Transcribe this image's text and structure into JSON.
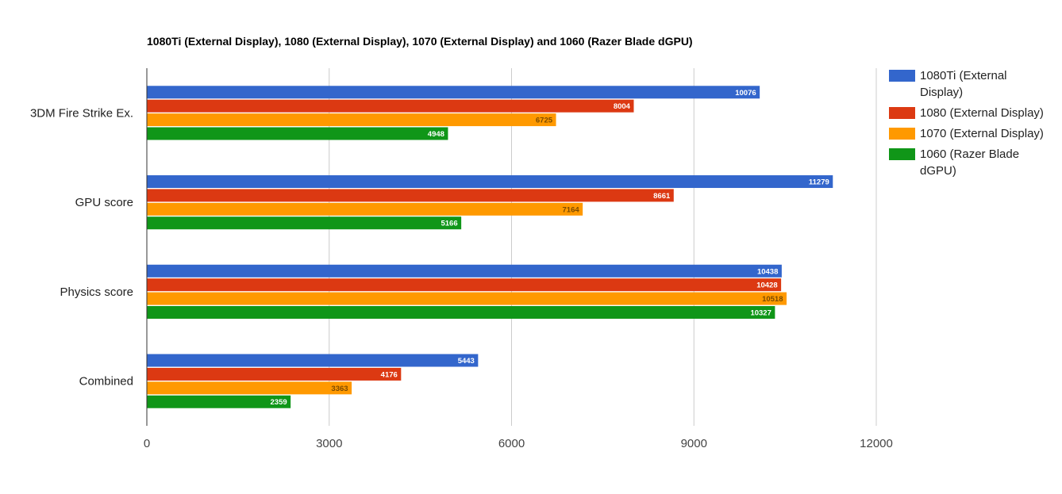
{
  "chart_data": {
    "type": "bar",
    "orientation": "horizontal",
    "title": "1080Ti (External Display), 1080 (External Display), 1070 (External Display) and 1060 (Razer Blade dGPU)",
    "categories": [
      "3DM Fire Strike Ex.",
      "GPU score",
      "Physics score",
      "Combined"
    ],
    "series": [
      {
        "name": "1080Ti (External Display)",
        "legend_lines": [
          "1080Ti (External",
          "Display)"
        ],
        "color": "#3366cc",
        "label_color": "#ffffff",
        "values": [
          10076,
          11279,
          10438,
          5443
        ]
      },
      {
        "name": "1080 (External Display)",
        "legend_lines": [
          "1080 (External Display)"
        ],
        "color": "#dc3912",
        "label_color": "#ffffff",
        "values": [
          8004,
          8661,
          10428,
          4176
        ]
      },
      {
        "name": "1070 (External Display)",
        "legend_lines": [
          "1070 (External Display)"
        ],
        "color": "#ff9900",
        "label_color": "#7a4a00",
        "values": [
          6725,
          7164,
          10518,
          3363
        ]
      },
      {
        "name": "1060 (Razer Blade dGPU)",
        "legend_lines": [
          "1060 (Razer Blade",
          "dGPU)"
        ],
        "color": "#109618",
        "label_color": "#ffffff",
        "values": [
          4948,
          5166,
          10327,
          2359
        ]
      }
    ],
    "xlabel": "",
    "ylabel": "",
    "xlim": [
      0,
      12000
    ],
    "xticks": [
      0,
      3000,
      6000,
      9000,
      12000
    ],
    "grid": true,
    "data_labels": true,
    "legend_position": "right"
  }
}
